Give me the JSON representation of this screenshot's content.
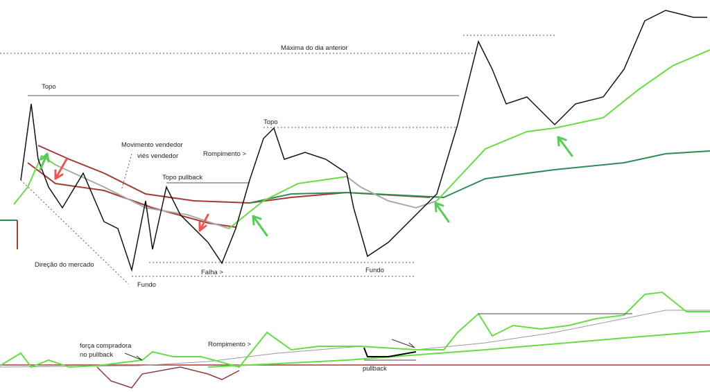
{
  "annotations": {
    "previous_day_high": "Máxima do dia anterior",
    "top_left": "Topo",
    "selling_move": "Movimento vendedor",
    "selling_bias": "viés vendedor",
    "breakout_upper": "Rompimento >",
    "top_middle": "Topo",
    "top_pullback": "Topo pullback",
    "market_direction": "Direção do mercado",
    "bottom_left": "Fundo",
    "failure": "Falha >",
    "bottom_middle": "Fundo",
    "buying_force_1": "força compradora",
    "buying_force_2": "no pullback",
    "breakout_lower": "Rompimento >",
    "pullback": "pullback"
  }
}
